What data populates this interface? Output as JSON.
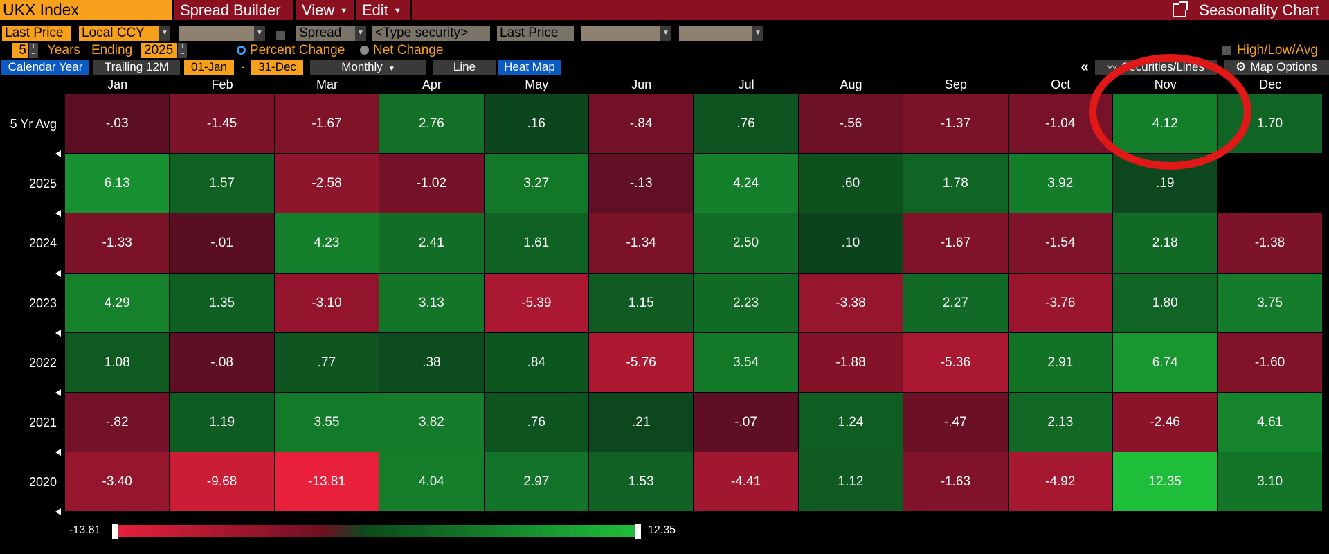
{
  "titlebar": {
    "ticker": "UKX Index",
    "menus": [
      "Spread Builder",
      "View",
      "Edit"
    ],
    "right": "Seasonality Chart"
  },
  "controls": {
    "row1": {
      "field": "Last Price",
      "currency": "Local CCY",
      "spread": "Spread",
      "security_placeholder": "<Type security>",
      "field2": "Last Price"
    },
    "row2": {
      "years": "5",
      "years_label": "Years",
      "ending_label": "Ending",
      "ending_year": "2025",
      "radio_percent": "Percent Change",
      "radio_net": "Net Change",
      "high_low": "High/Low/Avg"
    },
    "row3": {
      "calendar_year": "Calendar Year",
      "trailing": "Trailing 12M",
      "start": "01-Jan",
      "dash": "-",
      "end": "31-Dec",
      "period": "Monthly",
      "line": "Line",
      "heat_map": "Heat Map",
      "collapse": "«",
      "securities": "Securities/Lines",
      "map_options": "Map Options"
    }
  },
  "colors": {
    "title_bar": "#8b1020",
    "ticker_bg": "#f7a01c",
    "highlight_circle": "#e01818",
    "scale_min": "#e8203c",
    "scale_mid_neg": "#6e0f22",
    "scale_mid_pos": "#0b4a1c",
    "scale_max": "#1fbf3a"
  },
  "chart_data": {
    "type": "heatmap",
    "x": [
      "Jan",
      "Feb",
      "Mar",
      "Apr",
      "May",
      "Jun",
      "Jul",
      "Aug",
      "Sep",
      "Oct",
      "Nov",
      "Dec"
    ],
    "rows": [
      {
        "label": "5 Yr Avg",
        "values": [
          "-.03",
          "-1.45",
          "-1.67",
          "2.76",
          ".16",
          "-.84",
          ".76",
          "-.56",
          "-1.37",
          "-1.04",
          "4.12",
          "1.70"
        ]
      },
      {
        "label": "2025",
        "values": [
          "6.13",
          "1.57",
          "-2.58",
          "-1.02",
          "3.27",
          "-.13",
          "4.24",
          ".60",
          "1.78",
          "3.92",
          ".19",
          null
        ]
      },
      {
        "label": "2024",
        "values": [
          "-1.33",
          "-.01",
          "4.23",
          "2.41",
          "1.61",
          "-1.34",
          "2.50",
          ".10",
          "-1.67",
          "-1.54",
          "2.18",
          "-1.38"
        ]
      },
      {
        "label": "2023",
        "values": [
          "4.29",
          "1.35",
          "-3.10",
          "3.13",
          "-5.39",
          "1.15",
          "2.23",
          "-3.38",
          "2.27",
          "-3.76",
          "1.80",
          "3.75"
        ]
      },
      {
        "label": "2022",
        "values": [
          "1.08",
          "-.08",
          ".77",
          ".38",
          ".84",
          "-5.76",
          "3.54",
          "-1.88",
          "-5.36",
          "2.91",
          "6.74",
          "-1.60"
        ]
      },
      {
        "label": "2021",
        "values": [
          "-.82",
          "1.19",
          "3.55",
          "3.82",
          ".76",
          ".21",
          "-.07",
          "1.24",
          "-.47",
          "2.13",
          "-2.46",
          "4.61"
        ]
      },
      {
        "label": "2020",
        "values": [
          "-3.40",
          "-9.68",
          "-13.81",
          "4.04",
          "2.97",
          "1.53",
          "-4.41",
          "1.12",
          "-1.63",
          "-4.92",
          "12.35",
          "3.10"
        ]
      }
    ],
    "scale": {
      "min": "-13.81",
      "max": "12.35"
    },
    "highlight": {
      "row": "5 Yr Avg",
      "column": "Nov"
    }
  }
}
